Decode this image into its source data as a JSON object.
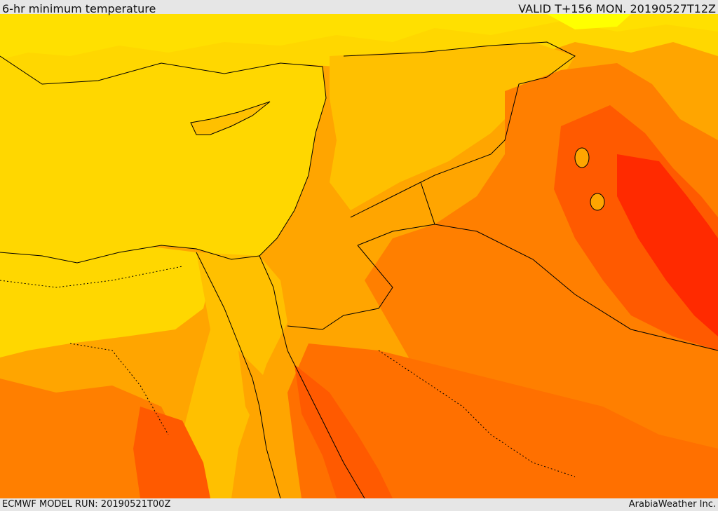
{
  "header": {
    "title": "6-hr minimum temperature",
    "valid": "VALID T+156 MON. 20190527T12Z"
  },
  "footer": {
    "model_run": "ECMWF MODEL RUN: 20190521T00Z",
    "credit": "ArabiaWeather Inc."
  },
  "palette": {
    "yellow": "#ffff00",
    "gold": "#ffd700",
    "amber": "#ffc000",
    "orange_light": "#ffa500",
    "orange": "#ff7f00",
    "orange_red": "#ff5a00",
    "red": "#ff2a00"
  }
}
